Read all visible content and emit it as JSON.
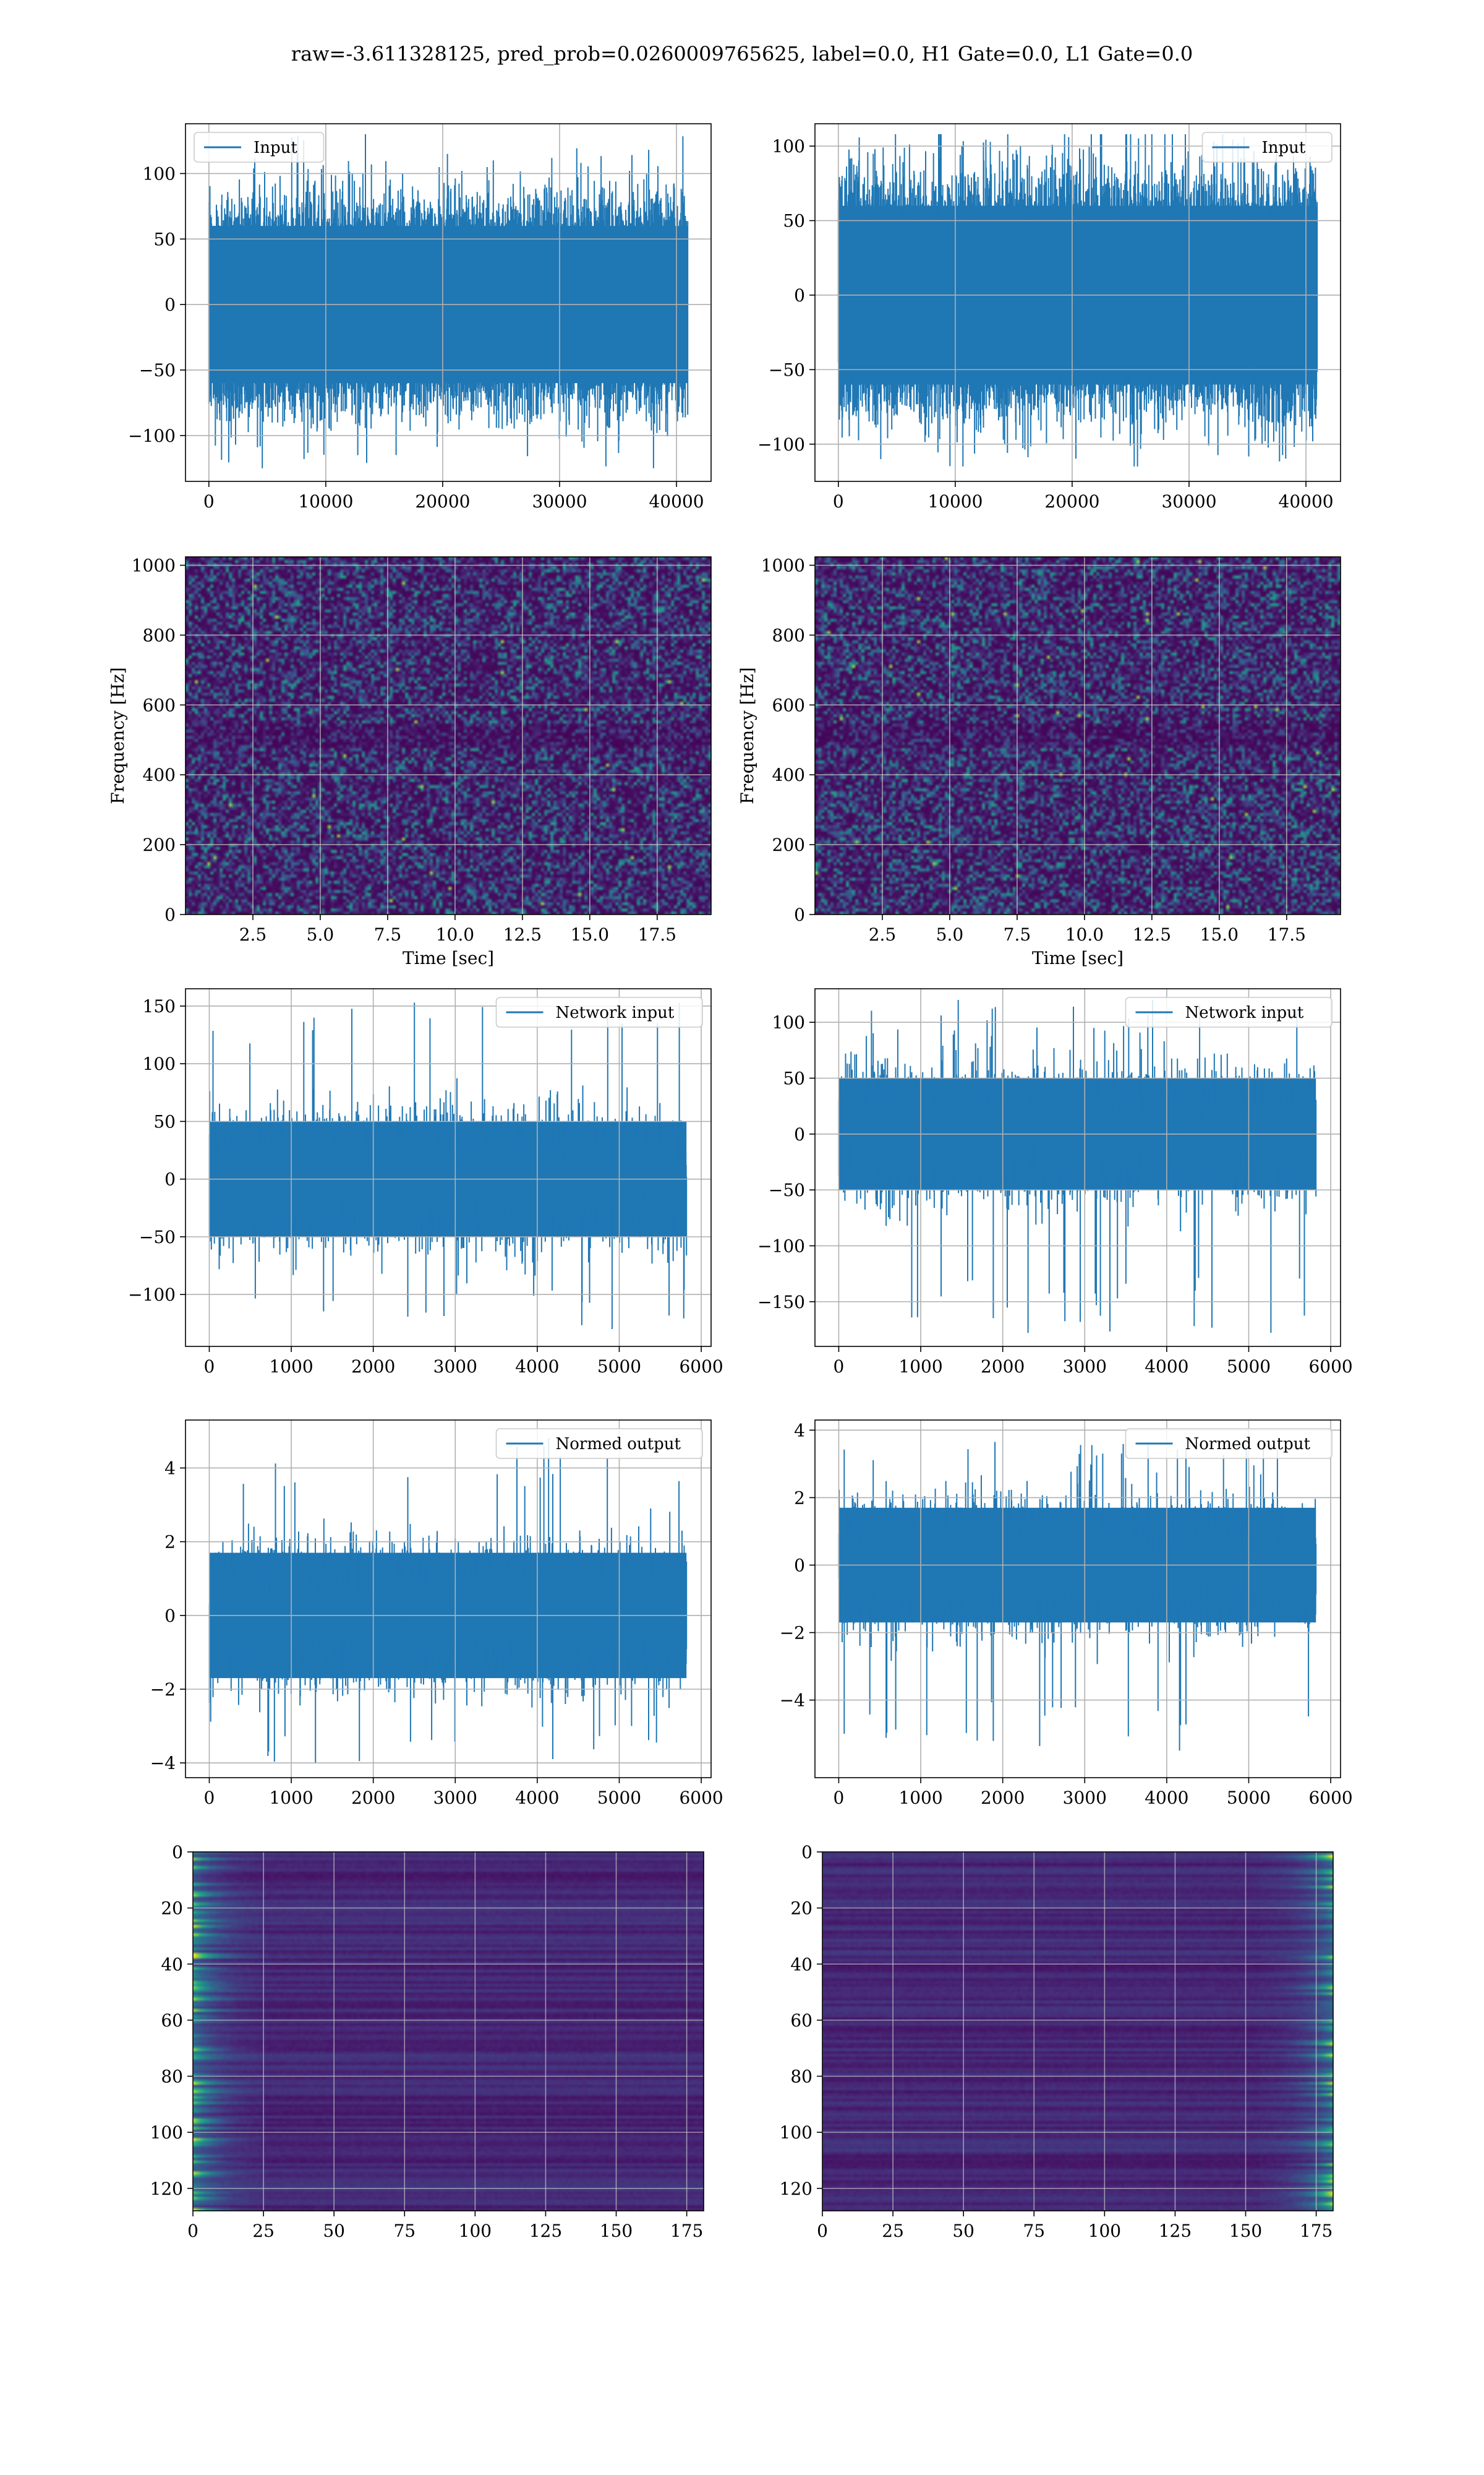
{
  "figure": {
    "suptitle": "raw=-3.611328125, pred_prob=0.0260009765625, label=0.0, H1 Gate=0.0, L1 Gate=0.0"
  },
  "colors": {
    "line": "#1f77b4",
    "grid": "#b0b0b0",
    "viridis_low": "#440154",
    "viridis_mid": "#21918c",
    "viridis_high": "#fde725"
  },
  "chart_data": [
    {
      "id": "input-h1",
      "type": "line",
      "title": "",
      "xlabel": "",
      "ylabel": "",
      "xlim": [
        -2000,
        42960
      ],
      "ylim": [
        -135,
        138
      ],
      "xticks": [
        0,
        10000,
        20000,
        30000,
        40000
      ],
      "yticks": [
        -100,
        -50,
        0,
        50,
        100
      ],
      "legend": {
        "label": "Input",
        "loc": "upper left"
      },
      "series": [
        {
          "name": "Input",
          "x_range": [
            0,
            40960
          ],
          "n_points": 40960,
          "noise_std": 30,
          "peak_min": -125,
          "peak_max": 130
        }
      ],
      "grid": true
    },
    {
      "id": "input-l1",
      "type": "line",
      "title": "",
      "xlabel": "",
      "ylabel": "",
      "xlim": [
        -2000,
        42960
      ],
      "ylim": [
        -125,
        115
      ],
      "xticks": [
        0,
        10000,
        20000,
        30000,
        40000
      ],
      "yticks": [
        -100,
        -50,
        0,
        50,
        100
      ],
      "legend": {
        "label": "Input",
        "loc": "upper right"
      },
      "series": [
        {
          "name": "Input",
          "x_range": [
            0,
            40960
          ],
          "n_points": 40960,
          "noise_std": 30,
          "peak_min": -115,
          "peak_max": 108
        }
      ],
      "grid": true
    },
    {
      "id": "spectrogram-h1",
      "type": "heatmap",
      "title": "",
      "xlabel": "Time [sec]",
      "ylabel": "Frequency [Hz]",
      "xlim": [
        0.0,
        19.5
      ],
      "ylim": [
        0,
        1024
      ],
      "xticks": [
        2.5,
        5.0,
        7.5,
        10.0,
        12.5,
        15.0,
        17.5
      ],
      "xtick_labels": [
        "2.5",
        "5.0",
        "7.5",
        "10.0",
        "12.5",
        "15.0",
        "17.5"
      ],
      "yticks": [
        0,
        200,
        400,
        600,
        800,
        1000
      ],
      "colormap": "viridis",
      "grid": true
    },
    {
      "id": "spectrogram-l1",
      "type": "heatmap",
      "title": "",
      "xlabel": "Time [sec]",
      "ylabel": "Frequency [Hz]",
      "xlim": [
        0.0,
        19.5
      ],
      "ylim": [
        0,
        1024
      ],
      "xticks": [
        2.5,
        5.0,
        7.5,
        10.0,
        12.5,
        15.0,
        17.5
      ],
      "xtick_labels": [
        "2.5",
        "5.0",
        "7.5",
        "10.0",
        "12.5",
        "15.0",
        "17.5"
      ],
      "yticks": [
        0,
        200,
        400,
        600,
        800,
        1000
      ],
      "colormap": "viridis",
      "grid": true
    },
    {
      "id": "network-input-h1",
      "type": "line",
      "title": "",
      "xlabel": "",
      "ylabel": "",
      "xlim": [
        -290,
        6120
      ],
      "ylim": [
        -145,
        165
      ],
      "xticks": [
        0,
        1000,
        2000,
        3000,
        4000,
        5000,
        6000
      ],
      "yticks": [
        -100,
        -50,
        0,
        50,
        100,
        150
      ],
      "legend": {
        "label": "Network input",
        "loc": "upper right"
      },
      "series": [
        {
          "name": "Network input",
          "x_range": [
            0,
            5820
          ],
          "n_points": 5820,
          "noise_std": 25,
          "peak_min": -130,
          "peak_max": 153
        }
      ],
      "grid": true
    },
    {
      "id": "network-input-l1",
      "type": "line",
      "title": "",
      "xlabel": "",
      "ylabel": "",
      "xlim": [
        -290,
        6120
      ],
      "ylim": [
        -190,
        130
      ],
      "xticks": [
        0,
        1000,
        2000,
        3000,
        4000,
        5000,
        6000
      ],
      "yticks": [
        -150,
        -100,
        -50,
        0,
        50,
        100
      ],
      "legend": {
        "label": "Network input",
        "loc": "upper right"
      },
      "series": [
        {
          "name": "Network input",
          "x_range": [
            0,
            5820
          ],
          "n_points": 5820,
          "noise_std": 25,
          "peak_min": -178,
          "peak_max": 120
        }
      ],
      "grid": true
    },
    {
      "id": "normed-output-h1",
      "type": "line",
      "title": "",
      "xlabel": "",
      "ylabel": "",
      "xlim": [
        -290,
        6120
      ],
      "ylim": [
        -4.4,
        5.3
      ],
      "xticks": [
        0,
        1000,
        2000,
        3000,
        4000,
        5000,
        6000
      ],
      "yticks": [
        -4,
        -2,
        0,
        2,
        4
      ],
      "legend": {
        "label": "Normed output",
        "loc": "upper right"
      },
      "series": [
        {
          "name": "Normed output",
          "x_range": [
            0,
            5820
          ],
          "n_points": 5820,
          "noise_std": 0.85,
          "peak_min": -4.0,
          "peak_max": 4.8
        }
      ],
      "grid": true
    },
    {
      "id": "normed-output-l1",
      "type": "line",
      "title": "",
      "xlabel": "",
      "ylabel": "",
      "xlim": [
        -290,
        6120
      ],
      "ylim": [
        -6.3,
        4.3
      ],
      "xticks": [
        0,
        1000,
        2000,
        3000,
        4000,
        5000,
        6000
      ],
      "yticks": [
        -4,
        -2,
        0,
        2,
        4
      ],
      "legend": {
        "label": "Normed output",
        "loc": "upper right"
      },
      "series": [
        {
          "name": "Normed output",
          "x_range": [
            0,
            5820
          ],
          "n_points": 5820,
          "noise_std": 0.85,
          "peak_min": -5.5,
          "peak_max": 3.7
        }
      ],
      "grid": true
    },
    {
      "id": "feature-map-h1",
      "type": "heatmap",
      "title": "",
      "xlabel": "",
      "ylabel": "",
      "xlim": [
        0,
        181
      ],
      "ylim": [
        128,
        0
      ],
      "xticks": [
        0,
        25,
        50,
        75,
        100,
        125,
        150,
        175
      ],
      "yticks": [
        0,
        20,
        40,
        60,
        80,
        100,
        120
      ],
      "colormap": "viridis",
      "bright_side": "left",
      "grid": true
    },
    {
      "id": "feature-map-l1",
      "type": "heatmap",
      "title": "",
      "xlabel": "",
      "ylabel": "",
      "xlim": [
        0,
        181
      ],
      "ylim": [
        128,
        0
      ],
      "xticks": [
        0,
        25,
        50,
        75,
        100,
        125,
        150,
        175
      ],
      "yticks": [
        0,
        20,
        40,
        60,
        80,
        100,
        120
      ],
      "colormap": "viridis",
      "bright_side": "right",
      "grid": true
    }
  ]
}
